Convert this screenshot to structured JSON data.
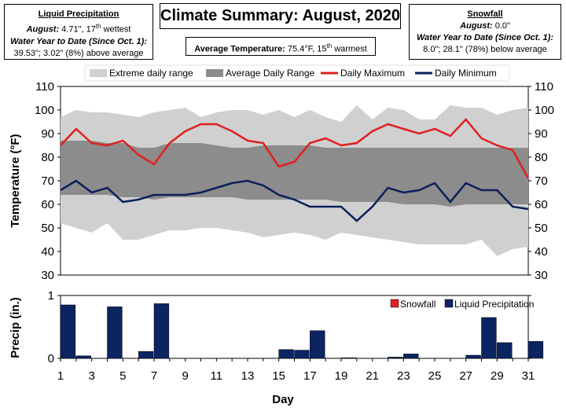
{
  "title": "Climate Summary: August, 2020",
  "average_temperature": {
    "label": "Average Temperature:",
    "value": "75.4°F, 15",
    "sup": "th",
    "rank": " warmest"
  },
  "liquid_box": {
    "heading": "Liquid Precipitation",
    "month_label": "August:",
    "month_value": " 4.71\", 17",
    "month_sup": "th",
    "month_rank": " wettest",
    "ytd_label": "Water Year to Date (Since Oct. 1):",
    "ytd_value": "39.53\"; 3.02\" (8%) above average"
  },
  "snow_box": {
    "heading": "Snowfall",
    "month_label": "August:",
    "month_value": " 0.0\"",
    "ytd_label": "Water Year to Date (Since Oct. 1):",
    "ytd_value": "8.0\"; 28.1\" (78%) below average"
  },
  "colors": {
    "extreme_range": "#d0d0d0",
    "average_range": "#8c8c8c",
    "daily_max": "#e02020",
    "daily_min": "#0c1f5c",
    "snowfall": "#e02020",
    "liquid": "#0c2462"
  },
  "chart_data": [
    {
      "type": "line",
      "xlabel": "Day",
      "ylabel": "Temperature (°F)",
      "ylim": [
        30,
        110
      ],
      "yticks": [
        30,
        40,
        50,
        60,
        70,
        80,
        90,
        100,
        110
      ],
      "x": [
        1,
        2,
        3,
        4,
        5,
        6,
        7,
        8,
        9,
        10,
        11,
        12,
        13,
        14,
        15,
        16,
        17,
        18,
        19,
        20,
        21,
        22,
        23,
        24,
        25,
        26,
        27,
        28,
        29,
        30,
        31
      ],
      "legend": [
        "Extreme daily range",
        "Average Daily Range",
        "Daily Maximum",
        "Daily Minimum"
      ],
      "legend_position": "top",
      "series": [
        {
          "name": "Daily Maximum",
          "values": [
            85,
            92,
            86,
            85,
            87,
            81,
            77,
            86,
            91,
            94,
            94,
            91,
            87,
            86,
            76,
            78,
            86,
            88,
            85,
            86,
            91,
            94,
            92,
            90,
            92,
            89,
            96,
            88,
            85,
            83,
            71
          ]
        },
        {
          "name": "Daily Minimum",
          "values": [
            66,
            70,
            65,
            67,
            61,
            62,
            64,
            64,
            64,
            65,
            67,
            69,
            70,
            68,
            64,
            62,
            59,
            59,
            59,
            53,
            59,
            67,
            65,
            66,
            69,
            61,
            69,
            66,
            66,
            59,
            58
          ]
        },
        {
          "name": "Extreme daily range",
          "high": [
            97,
            100,
            99,
            99,
            98,
            97,
            99,
            100,
            101,
            97,
            99,
            100,
            100,
            98,
            100,
            97,
            100,
            97,
            95,
            102,
            96,
            101,
            100,
            96,
            96,
            102,
            101,
            101,
            98,
            100,
            101
          ],
          "low": [
            52,
            50,
            48,
            52,
            45,
            45,
            47,
            49,
            49,
            50,
            50,
            49,
            48,
            46,
            47,
            48,
            47,
            45,
            48,
            47,
            46,
            45,
            44,
            43,
            43,
            43,
            43,
            45,
            38,
            41,
            42
          ]
        },
        {
          "name": "Average Daily Range",
          "high": [
            87,
            87,
            87,
            86,
            86,
            84,
            84,
            86,
            86,
            86,
            85,
            84,
            84,
            85,
            85,
            85,
            85,
            84,
            84,
            84,
            84,
            84,
            84,
            84,
            84,
            84,
            84,
            84,
            84,
            84,
            84
          ],
          "low": [
            64,
            64,
            64,
            64,
            63,
            63,
            62,
            63,
            63,
            63,
            63,
            63,
            62,
            62,
            62,
            62,
            62,
            62,
            61,
            61,
            61,
            61,
            60,
            60,
            60,
            59,
            60,
            60,
            60,
            60,
            60
          ]
        }
      ]
    },
    {
      "type": "bar",
      "xlabel": "Day",
      "ylabel": "Precip (in.)",
      "ylim": [
        0,
        1
      ],
      "yticks": [
        0,
        1
      ],
      "legend": [
        "Snowfall",
        "Liquid Precipitation"
      ],
      "legend_position": "top-right",
      "x": [
        1,
        2,
        3,
        4,
        5,
        6,
        7,
        8,
        9,
        10,
        11,
        12,
        13,
        14,
        15,
        16,
        17,
        18,
        19,
        20,
        21,
        22,
        23,
        24,
        25,
        26,
        27,
        28,
        29,
        30,
        31
      ],
      "series": [
        {
          "name": "Snowfall",
          "values": [
            0,
            0,
            0,
            0,
            0,
            0,
            0,
            0,
            0,
            0,
            0,
            0,
            0,
            0,
            0,
            0,
            0,
            0,
            0,
            0,
            0,
            0,
            0,
            0,
            0,
            0,
            0,
            0,
            0,
            0,
            0
          ]
        },
        {
          "name": "Liquid Precipitation",
          "values": [
            0.85,
            0.04,
            0,
            0.82,
            0,
            0.11,
            0.87,
            0,
            0,
            0,
            0,
            0,
            0,
            0,
            0.14,
            0.13,
            0.44,
            0,
            0.01,
            0,
            0,
            0.02,
            0.07,
            0,
            0,
            0,
            0.05,
            0.65,
            0.25,
            0,
            0.27
          ]
        }
      ]
    }
  ],
  "xticks": [
    1,
    3,
    5,
    7,
    9,
    11,
    13,
    15,
    17,
    19,
    21,
    23,
    25,
    27,
    29,
    31
  ]
}
